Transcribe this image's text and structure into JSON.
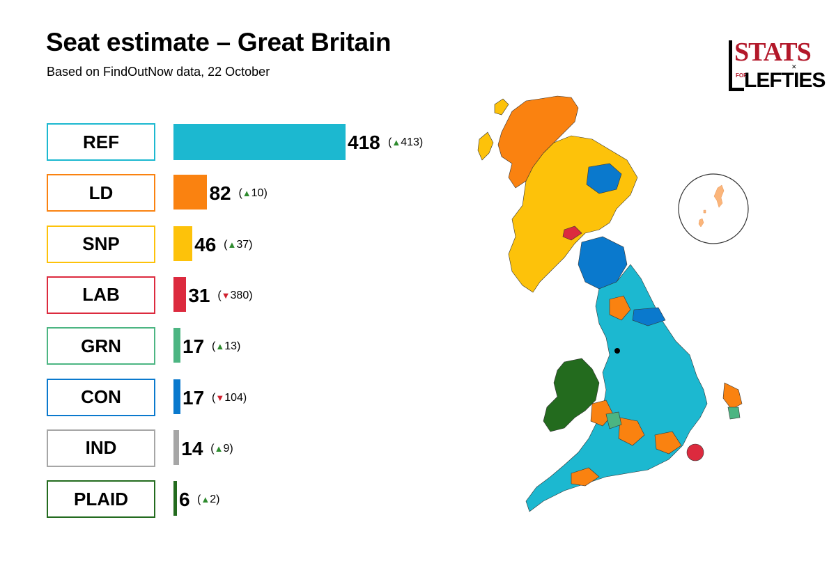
{
  "header": {
    "title": "Seat estimate – Great Britain",
    "subtitle": "Based on FindOutNow data, 22 October"
  },
  "logo": {
    "top_text": "STATS",
    "for_text": "FOR",
    "bottom_text": "LEFTIES"
  },
  "chart_data": {
    "type": "bar",
    "orientation": "horizontal",
    "title": "Seat estimate – Great Britain",
    "subtitle": "Based on FindOutNow data, 22 October",
    "categories": [
      "REF",
      "LD",
      "SNP",
      "LAB",
      "GRN",
      "CON",
      "IND",
      "PLAID"
    ],
    "values": [
      418,
      82,
      46,
      31,
      17,
      17,
      14,
      6
    ],
    "changes": [
      {
        "direction": "up",
        "value": 413
      },
      {
        "direction": "up",
        "value": 10
      },
      {
        "direction": "up",
        "value": 37
      },
      {
        "direction": "down",
        "value": 380
      },
      {
        "direction": "up",
        "value": 13
      },
      {
        "direction": "down",
        "value": 104
      },
      {
        "direction": "up",
        "value": 9
      },
      {
        "direction": "up",
        "value": 2
      }
    ],
    "colors": [
      "#1cb8d0",
      "#fa8210",
      "#fdc20a",
      "#dc2a3e",
      "#4cb582",
      "#0a79cd",
      "#a6a6a6",
      "#236b1e"
    ]
  }
}
